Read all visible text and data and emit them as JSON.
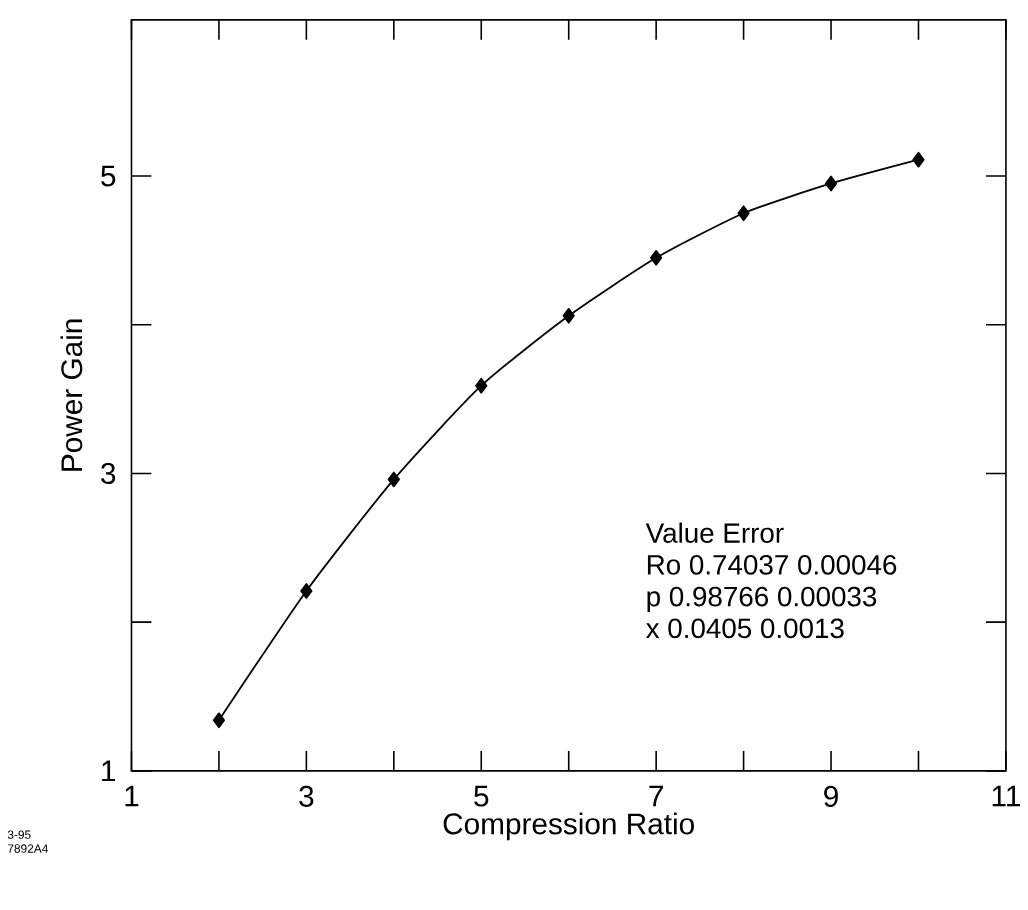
{
  "chart_data": {
    "type": "line",
    "xlabel": "Compression Ratio",
    "ylabel": "Power Gain",
    "x": [
      2,
      3,
      4,
      5,
      6,
      7,
      8,
      9,
      10
    ],
    "values": [
      1.34,
      2.21,
      2.96,
      3.59,
      4.06,
      4.45,
      4.75,
      4.95,
      5.11
    ],
    "color": "#000000",
    "marker": "diamond",
    "line_style": "solid",
    "xlim": [
      1,
      11
    ],
    "ylim": [
      1,
      6.05
    ],
    "xticks": [
      1,
      {
        "value": 2,
        "label": null
      },
      3,
      {
        "value": 4,
        "label": null
      },
      5,
      {
        "value": 6,
        "label": null
      },
      7,
      {
        "value": 8,
        "label": null
      },
      9,
      {
        "value": 10,
        "label": null
      },
      11
    ],
    "yticks": [
      1,
      {
        "value": 2,
        "label": null
      },
      3,
      {
        "value": 4,
        "label": null
      },
      5
    ],
    "annotations": [
      "Value   Error",
      "Ro 0.74037 0.00046",
      "p 0.98766 0.00033",
      "x 0.0405 0.0013",
      "3-95",
      "7892A4"
    ]
  }
}
